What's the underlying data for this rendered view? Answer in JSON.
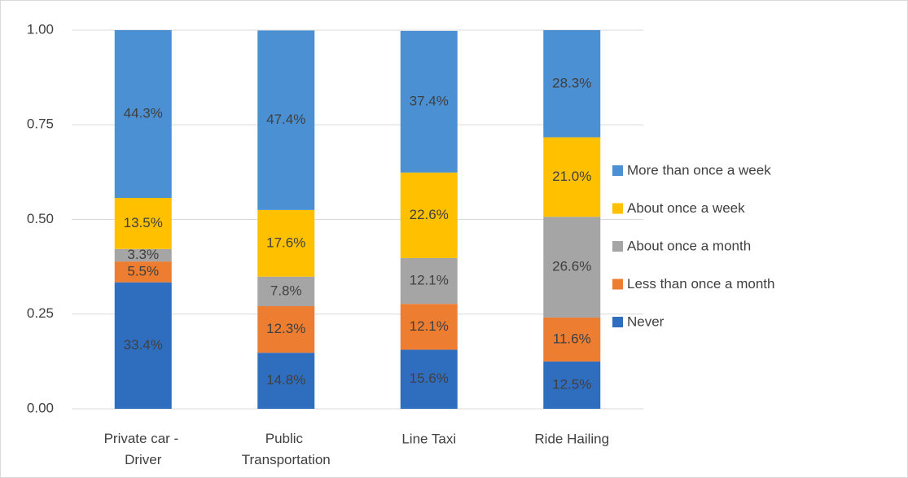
{
  "chart_data": {
    "type": "stacked-bar",
    "categories": [
      "Private car - Driver",
      "Public Transportation",
      "Line Taxi",
      "Ride Hailing"
    ],
    "series": [
      {
        "name": "Never",
        "color": "#2f6ebf",
        "values": [
          0.334,
          0.148,
          0.156,
          0.125
        ],
        "value_labels": [
          "33.4%",
          "14.8%",
          "15.6%",
          "12.5%"
        ]
      },
      {
        "name": "Less than once a month",
        "color": "#ed7d31",
        "values": [
          0.055,
          0.123,
          0.121,
          0.116
        ],
        "value_labels": [
          "5.5%",
          "12.3%",
          "12.1%",
          "11.6%"
        ]
      },
      {
        "name": "About once a month",
        "color": "#a5a5a5",
        "values": [
          0.033,
          0.078,
          0.121,
          0.266
        ],
        "value_labels": [
          "3.3%",
          "7.8%",
          "12.1%",
          "26.6%"
        ]
      },
      {
        "name": "About once a week",
        "color": "#ffc000",
        "values": [
          0.135,
          0.176,
          0.226,
          0.21
        ],
        "value_labels": [
          "13.5%",
          "17.6%",
          "22.6%",
          "21.0%"
        ]
      },
      {
        "name": "More than once a week",
        "color": "#4a90d3",
        "values": [
          0.443,
          0.474,
          0.374,
          0.283
        ],
        "value_labels": [
          "44.3%",
          "47.4%",
          "37.4%",
          "28.3%"
        ]
      }
    ],
    "ylim": [
      0,
      1
    ],
    "yticks": [
      {
        "value": 0,
        "label": "0.00"
      },
      {
        "value": 0.25,
        "label": "0.25"
      },
      {
        "value": 0.5,
        "label": "0.50"
      },
      {
        "value": 0.75,
        "label": "0.75"
      },
      {
        "value": 1,
        "label": "1.00"
      }
    ],
    "grid": true,
    "legend": "right"
  }
}
